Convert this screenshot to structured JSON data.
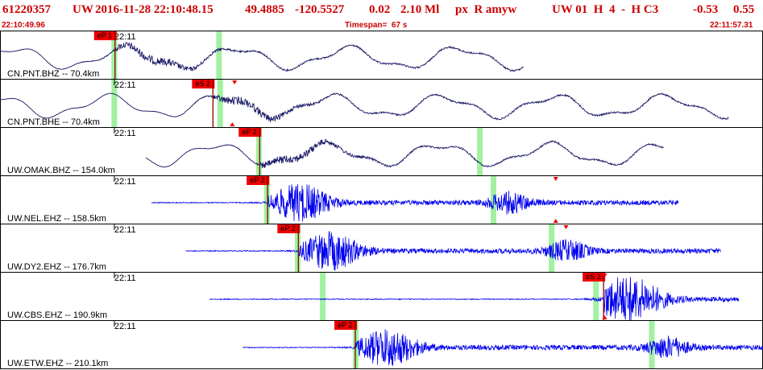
{
  "header": {
    "event_id": "61220357",
    "network": "UW",
    "datetime": "2016-11-28 22:10:48.15",
    "lat": "49.4885",
    "lon": "-120.5527",
    "depth": "0.02",
    "magnitude": "2.10 Ml",
    "flags": "px  R amyw",
    "version": "UW 01  H  4  -  H C3",
    "val1": "-0.53",
    "val2": "0.55"
  },
  "subheader": {
    "start_time": "22:10:49.96",
    "timespan": "Timespan=  67 s",
    "end_time": "22:11:57.31"
  },
  "colors": {
    "header_text": "#cc0000",
    "trace_broadband": "#1a1a66",
    "trace_short_period": "#0000ee",
    "pick_box": "#ee0000",
    "pick_line": "#8a0000",
    "highlight": "#90ee90",
    "panel_border": "#000000"
  },
  "chart_data": {
    "type": "line",
    "title": "",
    "xlabel": "",
    "ylabel": "",
    "x_start": "22:10:49.96",
    "x_end": "22:11:57.31",
    "x_range_s": [
      0,
      67
    ],
    "minute_tick_label": "22:11",
    "minute_tick_s": 10.04,
    "traces": [
      {
        "label": "CN.PNT.BHZ -- 70.4km",
        "kind": "broadband",
        "start_s": 0.0,
        "end_s": 46.0,
        "pick": "eP 1",
        "pick_s": 10.1,
        "highlights_s": [
          10.0,
          19.2
        ],
        "markers": []
      },
      {
        "label": "CN.PNT.BHE -- 70.4km",
        "kind": "broadband",
        "start_s": 0.0,
        "end_s": 64.0,
        "pick": "eS 2",
        "pick_s": 18.7,
        "highlights_s": [
          10.0,
          19.3
        ],
        "markers": [
          "down:20.6",
          "up:20.4"
        ]
      },
      {
        "label": "UW.OMAK.BHZ -- 154.0km",
        "kind": "broadband",
        "start_s": 12.8,
        "end_s": 58.3,
        "pick": "eP 2",
        "pick_s": 22.8,
        "highlights_s": [
          22.7,
          42.1
        ],
        "markers": []
      },
      {
        "label": "UW.NEL.EHZ -- 158.5km",
        "kind": "short_period",
        "start_s": 13.3,
        "end_s": 59.6,
        "pick": "eP 2",
        "pick_s": 23.5,
        "highlights_s": [
          23.4,
          43.3
        ],
        "markers": [
          "down:48.8",
          "up:48.8"
        ]
      },
      {
        "label": "UW.DY2.EHZ -- 176.7km",
        "kind": "short_period",
        "start_s": 16.3,
        "end_s": 63.3,
        "pick": "eP 2",
        "pick_s": 26.2,
        "highlights_s": [
          26.1,
          48.4
        ],
        "markers": [
          "down:49.7"
        ]
      },
      {
        "label": "UW.CBS.EHZ -- 190.9km",
        "kind": "short_period",
        "start_s": 18.4,
        "end_s": 64.9,
        "pick": "eS 2",
        "pick_s": 53.0,
        "highlights_s": [
          28.3,
          52.3
        ],
        "markers": [
          "down:53.1",
          "up:53.1"
        ]
      },
      {
        "label": "UW.ETW.EHZ -- 210.1km",
        "kind": "short_period",
        "start_s": 21.3,
        "end_s": 67.0,
        "pick": "eP 2",
        "pick_s": 31.2,
        "highlights_s": [
          31.2,
          57.2
        ],
        "markers": []
      }
    ]
  }
}
